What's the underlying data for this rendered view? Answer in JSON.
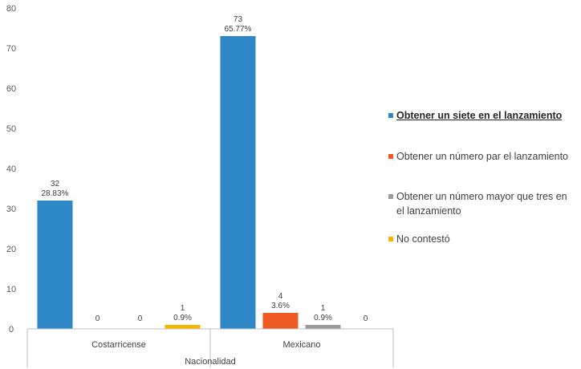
{
  "chart_data": {
    "type": "bar",
    "categories": [
      "Costarricense",
      "Mexicano"
    ],
    "xlabel": "Nacionalidad",
    "ylabel": "",
    "title": "",
    "ylim": [
      0,
      80
    ],
    "yticks": [
      0,
      10,
      20,
      30,
      40,
      50,
      60,
      70,
      80
    ],
    "grid": false,
    "legend_position": "right",
    "series": [
      {
        "name": "Obtener un siete en el lanzamiento",
        "color": "#2E87C7",
        "values": [
          32,
          73
        ],
        "labels": [
          [
            "32",
            "28.83%"
          ],
          [
            "73",
            "65.77%"
          ]
        ]
      },
      {
        "name": "Obtener un número par el lanzamiento",
        "color": "#EE5A24",
        "values": [
          0,
          4
        ],
        "labels": [
          [
            "0"
          ],
          [
            "4",
            "3.6%"
          ]
        ]
      },
      {
        "name": "Obtener un número mayor que tres en el lanzamiento",
        "color": "#9B9B9B",
        "values": [
          0,
          1
        ],
        "labels": [
          [
            "0"
          ],
          [
            "1",
            "0.9%"
          ]
        ]
      },
      {
        "name": "No contestó",
        "color": "#F7B500",
        "values": [
          1,
          0
        ],
        "labels": [
          [
            "1",
            "0.9%"
          ],
          [
            "0"
          ]
        ]
      }
    ],
    "highlighted_legend_entry": "Obtener un siete en el lanzamiento"
  }
}
